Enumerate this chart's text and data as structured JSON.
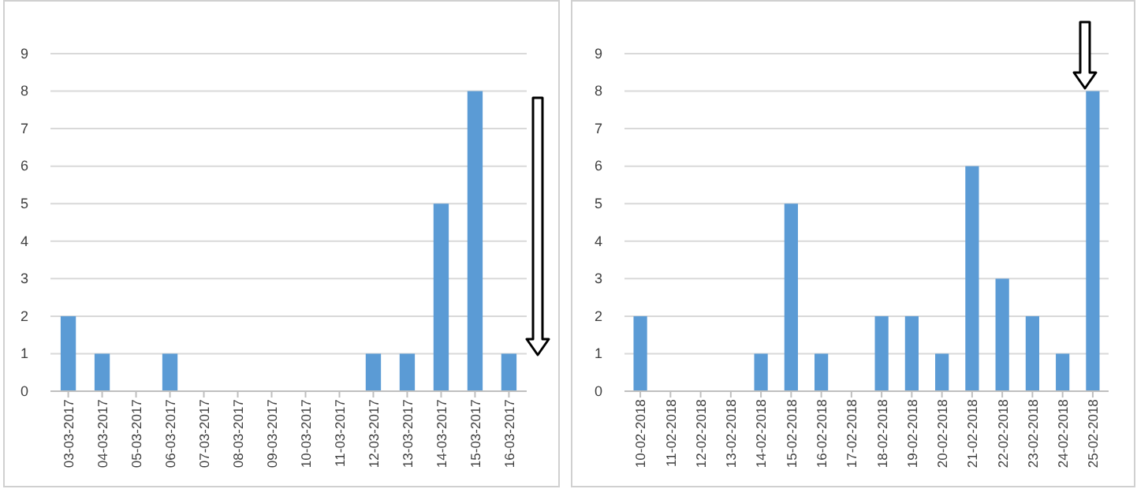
{
  "chart_data": [
    {
      "type": "bar",
      "categories": [
        "03-03-2017",
        "04-03-2017",
        "05-03-2017",
        "06-03-2017",
        "07-03-2017",
        "08-03-2017",
        "09-03-2017",
        "10-03-2017",
        "11-03-2017",
        "12-03-2017",
        "13-03-2017",
        "14-03-2017",
        "15-03-2017",
        "16-03-2017"
      ],
      "values": [
        2,
        1,
        0,
        1,
        0,
        0,
        0,
        0,
        0,
        1,
        1,
        5,
        8,
        1
      ],
      "color": "#5b9bd5",
      "ylim": [
        0,
        9
      ],
      "yticks": [
        0,
        1,
        2,
        3,
        4,
        5,
        6,
        7,
        8,
        9
      ],
      "grid": "y"
    },
    {
      "type": "bar",
      "categories": [
        "10-02-2018",
        "11-02-2018",
        "12-02-2018",
        "13-02-2018",
        "14-02-2018",
        "15-02-2018",
        "16-02-2018",
        "17-02-2018",
        "18-02-2018",
        "19-02-2018",
        "20-02-2018",
        "21-02-2018",
        "22-02-2018",
        "23-02-2018",
        "24-02-2018",
        "25-02-2018"
      ],
      "values": [
        2,
        0,
        0,
        0,
        1,
        5,
        1,
        0,
        2,
        2,
        1,
        6,
        3,
        2,
        1,
        8
      ],
      "color": "#5b9bd5",
      "ylim": [
        0,
        9
      ],
      "yticks": [
        0,
        1,
        2,
        3,
        4,
        5,
        6,
        7,
        8,
        9
      ],
      "grid": "y"
    }
  ]
}
